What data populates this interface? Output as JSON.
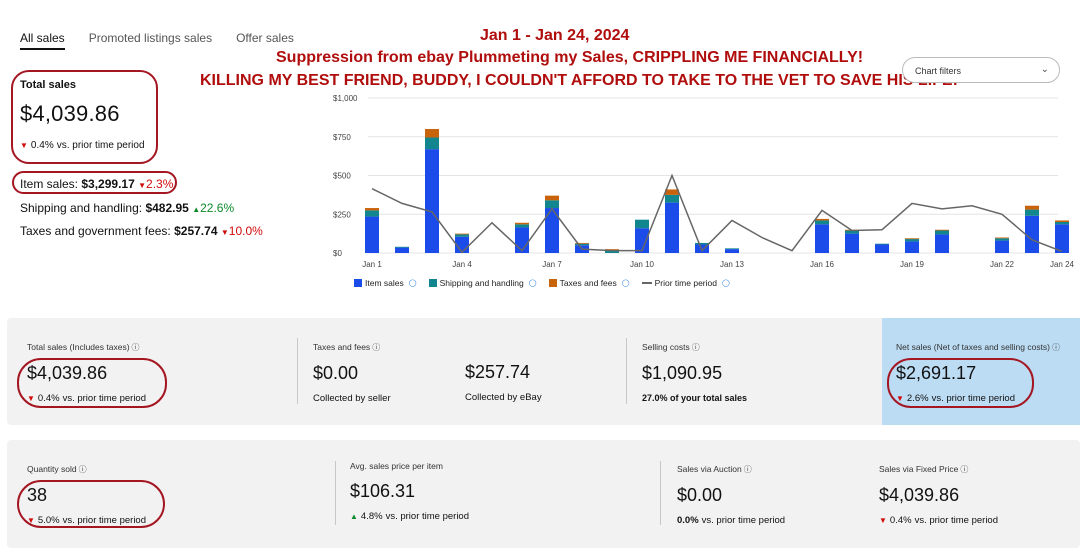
{
  "tabs": [
    "All sales",
    "Promoted listings sales",
    "Offer sales"
  ],
  "overlay": {
    "line1": "Jan 1 - Jan 24, 2024",
    "line2": "Suppression from ebay Plummeting my Sales, CRIPPLING ME FINANCIALLY!",
    "line3": "KILLING MY BEST FRIEND, BUDDY, I COULDN'T AFFORD TO TAKE TO THE VET TO SAVE HIS LIFE!"
  },
  "chart_filter": {
    "label": "Chart filters",
    "icon": "chevron-down-icon"
  },
  "summary": {
    "label": "Total sales",
    "value": "$4,039.86",
    "delta": "0.4%",
    "delta_text": "vs. prior time period"
  },
  "breakdown": [
    {
      "label": "Item sales:",
      "value": "$3,299.17",
      "delta": "2.3%",
      "direction": "down"
    },
    {
      "label": "Shipping and handling:",
      "value": "$482.95",
      "delta": "22.6%",
      "direction": "up"
    },
    {
      "label": "Taxes and government fees:",
      "value": "$257.74",
      "delta": "10.0%",
      "direction": "down"
    }
  ],
  "chart_data": {
    "type": "bar",
    "stacked": true,
    "ylim": [
      0,
      1000
    ],
    "y_ticks": [
      "$0",
      "$250",
      "$500",
      "$750",
      "$1,000"
    ],
    "x_tick_labels": [
      "Jan 1",
      "Jan 4",
      "Jan 7",
      "Jan 10",
      "Jan 13",
      "Jan 16",
      "Jan 19",
      "Jan 22",
      "Jan 24"
    ],
    "categories": [
      "Jan 1",
      "Jan 2",
      "Jan 3",
      "Jan 4",
      "Jan 5",
      "Jan 6",
      "Jan 7",
      "Jan 8",
      "Jan 9",
      "Jan 10",
      "Jan 11",
      "Jan 12",
      "Jan 13",
      "Jan 14",
      "Jan 15",
      "Jan 16",
      "Jan 17",
      "Jan 18",
      "Jan 19",
      "Jan 20",
      "Jan 21",
      "Jan 22",
      "Jan 23",
      "Jan 24"
    ],
    "series": [
      {
        "name": "Item sales",
        "color": "#1b4be8",
        "values": [
          235,
          35,
          670,
          105,
          0,
          165,
          290,
          50,
          0,
          160,
          325,
          55,
          25,
          0,
          0,
          185,
          125,
          55,
          75,
          120,
          0,
          80,
          240,
          185
        ]
      },
      {
        "name": "Shipping and handling",
        "color": "#11868f",
        "values": [
          40,
          5,
          75,
          15,
          0,
          20,
          50,
          10,
          20,
          55,
          50,
          10,
          5,
          0,
          0,
          25,
          20,
          5,
          15,
          25,
          0,
          15,
          40,
          15
        ]
      },
      {
        "name": "Taxes and fees",
        "color": "#c8630b",
        "values": [
          15,
          0,
          55,
          5,
          0,
          10,
          30,
          5,
          5,
          0,
          35,
          0,
          0,
          0,
          0,
          10,
          5,
          0,
          5,
          5,
          0,
          5,
          25,
          10
        ]
      }
    ],
    "line_series": {
      "name": "Prior time period",
      "color": "#666666",
      "values": [
        415,
        320,
        265,
        5,
        195,
        15,
        285,
        25,
        15,
        15,
        500,
        15,
        210,
        100,
        15,
        275,
        145,
        150,
        320,
        285,
        305,
        250,
        85,
        10
      ]
    },
    "legend_placement": "bottom-left"
  },
  "cards_row1": {
    "total_sales": {
      "label": "Total sales (Includes taxes)",
      "value": "$4,039.86",
      "delta": "0.4%",
      "delta_text": "vs. prior time period"
    },
    "taxes_fees": {
      "label": "Taxes and fees",
      "seller_value": "$0.00",
      "seller_label": "Collected by seller",
      "ebay_value": "$257.74",
      "ebay_label": "Collected by eBay"
    },
    "selling_costs": {
      "label": "Selling costs",
      "value": "$1,090.95",
      "sub": "27.0% of your total sales"
    },
    "net_sales": {
      "label": "Net sales (Net of taxes and selling costs)",
      "value": "$2,691.17",
      "delta": "2.6%",
      "delta_text": "vs. prior time period"
    }
  },
  "cards_row2": {
    "quantity": {
      "label": "Quantity sold",
      "value": "38",
      "delta": "5.0%",
      "delta_text": "vs. prior time period"
    },
    "avg_price": {
      "label": "Avg. sales price per item",
      "value": "$106.31",
      "delta": "4.8%",
      "delta_text": "vs. prior time period"
    },
    "auction": {
      "label": "Sales via Auction",
      "value": "$0.00",
      "delta": "0.0%",
      "delta_text": "vs. prior time period"
    },
    "fixed_price": {
      "label": "Sales via Fixed Price",
      "value": "$4,039.86",
      "delta": "0.4%",
      "delta_text": "vs. prior time period"
    }
  }
}
